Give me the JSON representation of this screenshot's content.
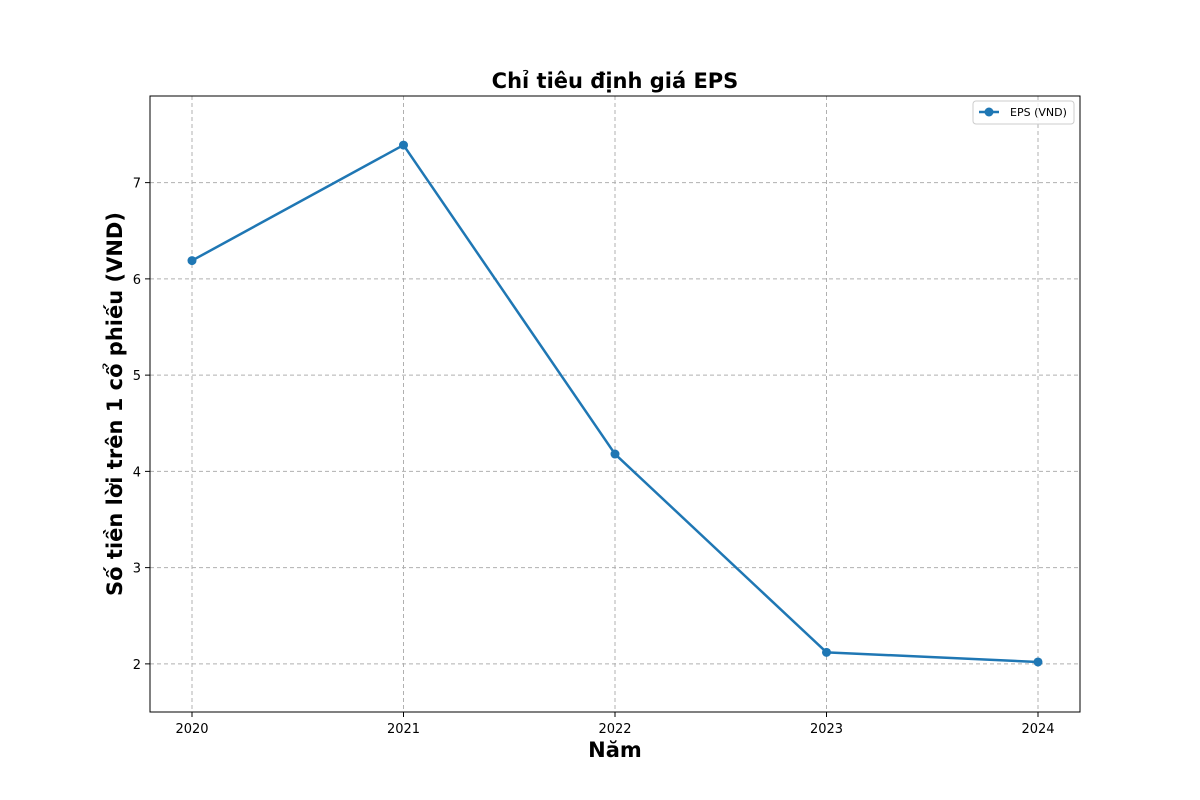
{
  "chart_data": {
    "type": "line",
    "title": "Chỉ tiêu định giá EPS",
    "xlabel": "Năm",
    "ylabel": "Số tiền lời trên 1 cổ phiếu (VND)",
    "categories": [
      "2020",
      "2021",
      "2022",
      "2023",
      "2024"
    ],
    "series": [
      {
        "name": "EPS (VND)",
        "values": [
          6.19,
          7.39,
          4.18,
          2.12,
          2.02
        ],
        "color": "#1f77b4",
        "marker": "circle"
      }
    ],
    "ylim": [
      1.5,
      7.9
    ],
    "yticks": [
      2,
      3,
      4,
      5,
      6,
      7
    ],
    "grid": true,
    "grid_style": "dashed",
    "legend_position": "top-right"
  }
}
